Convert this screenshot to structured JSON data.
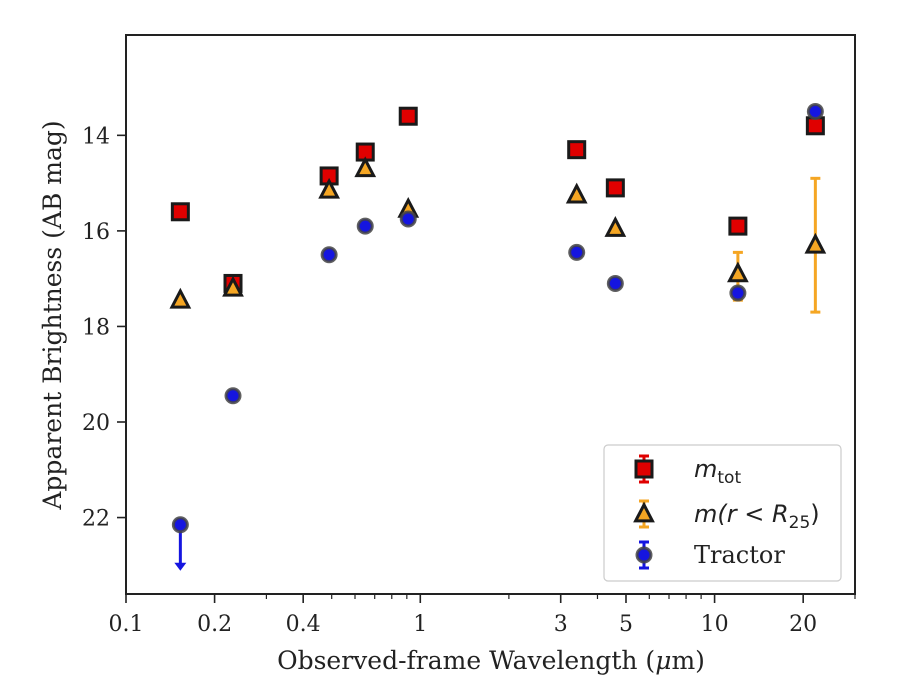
{
  "chart_data": {
    "type": "scatter",
    "xscale": "log",
    "xlim": [
      0.1,
      30
    ],
    "ylim": [
      23.6,
      11.9
    ],
    "y_inverted": true,
    "xlabel_main": "Observed-frame Wavelength (",
    "xlabel_symbol": "μ",
    "xlabel_unit": "m)",
    "ylabel": "Apparent Brightness (AB mag)",
    "x_ticks": [
      {
        "value": 0.1,
        "label": "0.1"
      },
      {
        "value": 0.2,
        "label": "0.2"
      },
      {
        "value": 0.4,
        "label": "0.4"
      },
      {
        "value": 1,
        "label": "1"
      },
      {
        "value": 3,
        "label": "3"
      },
      {
        "value": 5,
        "label": "5"
      },
      {
        "value": 10,
        "label": "10"
      },
      {
        "value": 20,
        "label": "20"
      }
    ],
    "y_ticks": [
      {
        "value": 14,
        "label": "14"
      },
      {
        "value": 16,
        "label": "16"
      },
      {
        "value": 18,
        "label": "18"
      },
      {
        "value": 20,
        "label": "20"
      },
      {
        "value": 22,
        "label": "22"
      }
    ],
    "legend": {
      "placement": "lower right",
      "entries": [
        {
          "series": "m_tot",
          "label_base": "m",
          "label_sub": "tot"
        },
        {
          "series": "m_r25",
          "label_base": "m(r < R",
          "label_sub": "25",
          "label_tail": ")"
        },
        {
          "series": "tractor",
          "label": "Tractor"
        }
      ]
    },
    "series": [
      {
        "id": "m_tot",
        "name": "m_tot",
        "marker": "square",
        "face_color": "#e00000",
        "edge_color": "#1a1a1a",
        "error_color": "#e00000",
        "points": [
          {
            "x": 0.153,
            "y": 15.6
          },
          {
            "x": 0.231,
            "y": 17.1
          },
          {
            "x": 0.49,
            "y": 14.85
          },
          {
            "x": 0.65,
            "y": 14.35
          },
          {
            "x": 0.91,
            "y": 13.6
          },
          {
            "x": 3.4,
            "y": 14.3
          },
          {
            "x": 4.6,
            "y": 15.1
          },
          {
            "x": 12.0,
            "y": 15.9
          },
          {
            "x": 22.0,
            "y": 13.8
          }
        ]
      },
      {
        "id": "m_r25",
        "name": "m(r < R25)",
        "marker": "triangle",
        "face_color": "#f5a623",
        "edge_color": "#1a1a1a",
        "error_color": "#f5a623",
        "points": [
          {
            "x": 0.153,
            "y": 17.45
          },
          {
            "x": 0.231,
            "y": 17.2
          },
          {
            "x": 0.49,
            "y": 15.15
          },
          {
            "x": 0.65,
            "y": 14.7
          },
          {
            "x": 0.91,
            "y": 15.55
          },
          {
            "x": 3.4,
            "y": 15.25
          },
          {
            "x": 4.6,
            "y": 15.95
          },
          {
            "x": 12.0,
            "y": 16.9,
            "yerr_low": 16.45,
            "yerr_high": 17.45
          },
          {
            "x": 22.0,
            "y": 16.3,
            "yerr_low": 14.9,
            "yerr_high": 17.7
          }
        ]
      },
      {
        "id": "tractor",
        "name": "Tractor",
        "marker": "circle",
        "face_color": "#1515e0",
        "edge_color": "#444444",
        "error_color": "#1515e0",
        "points": [
          {
            "x": 0.153,
            "y": 22.15,
            "upper_limit": true
          },
          {
            "x": 0.231,
            "y": 19.45
          },
          {
            "x": 0.49,
            "y": 16.5
          },
          {
            "x": 0.65,
            "y": 15.9
          },
          {
            "x": 0.91,
            "y": 15.75
          },
          {
            "x": 3.4,
            "y": 16.45
          },
          {
            "x": 4.6,
            "y": 17.1
          },
          {
            "x": 12.0,
            "y": 17.3
          },
          {
            "x": 22.0,
            "y": 13.5
          }
        ]
      }
    ]
  }
}
